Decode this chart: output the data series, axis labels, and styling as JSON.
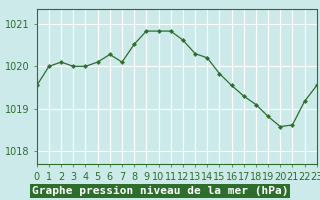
{
  "x": [
    0,
    1,
    2,
    3,
    4,
    5,
    6,
    7,
    8,
    9,
    10,
    11,
    12,
    13,
    14,
    15,
    16,
    17,
    18,
    19,
    20,
    21,
    22,
    23
  ],
  "y": [
    1019.55,
    1020.0,
    1020.1,
    1020.0,
    1020.0,
    1020.1,
    1020.28,
    1020.1,
    1020.52,
    1020.83,
    1020.83,
    1020.83,
    1020.62,
    1020.3,
    1020.2,
    1019.83,
    1019.55,
    1019.3,
    1019.1,
    1018.82,
    1018.58,
    1018.62,
    1019.18,
    1019.55
  ],
  "line_color": "#2d6e2d",
  "marker_color": "#2d6e2d",
  "bg_color": "#cdeaea",
  "grid_color": "#ffffff",
  "xlabel": "Graphe pression niveau de la mer (hPa)",
  "xlabel_color": "#ffffff",
  "xlabel_bg": "#2d6e2d",
  "ylabel_ticks": [
    1018,
    1019,
    1020,
    1021
  ],
  "ylim": [
    1017.7,
    1021.35
  ],
  "xlim": [
    0,
    23
  ],
  "xtick_labels": [
    "0",
    "1",
    "2",
    "3",
    "4",
    "5",
    "6",
    "7",
    "8",
    "9",
    "10",
    "11",
    "12",
    "13",
    "14",
    "15",
    "16",
    "17",
    "18",
    "19",
    "20",
    "21",
    "22",
    "23"
  ],
  "tick_color": "#2d6e2d",
  "xlabel_fontsize": 8.0,
  "tick_fontsize": 7.0,
  "spine_color": "#2d6e2d"
}
